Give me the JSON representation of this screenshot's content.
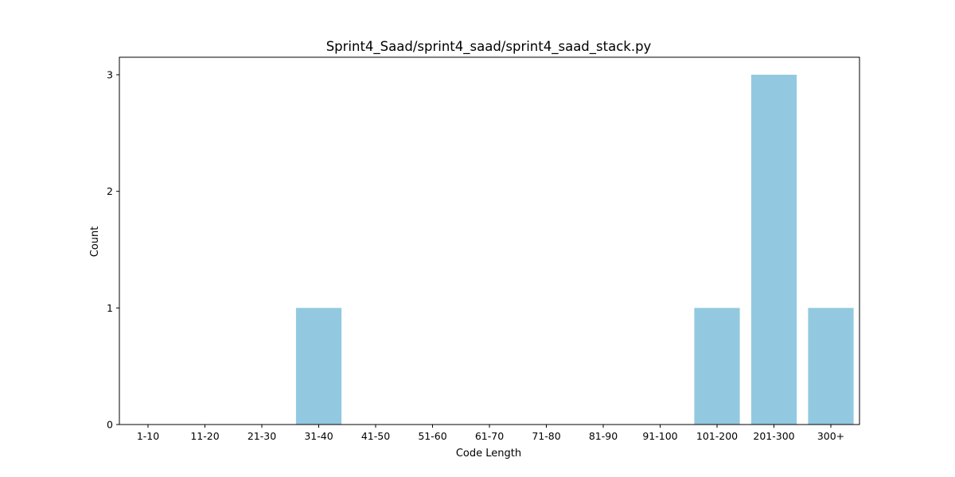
{
  "chart_data": {
    "type": "bar",
    "title": "Sprint4_Saad/sprint4_saad/sprint4_saad_stack.py",
    "xlabel": "Code Length",
    "ylabel": "Count",
    "categories": [
      "1-10",
      "11-20",
      "21-30",
      "31-40",
      "41-50",
      "51-60",
      "61-70",
      "71-80",
      "81-90",
      "91-100",
      "101-200",
      "201-300",
      "300+"
    ],
    "values": [
      0,
      0,
      0,
      1,
      0,
      0,
      0,
      0,
      0,
      0,
      1,
      3,
      1
    ],
    "ylim": [
      0,
      3.15
    ],
    "yticks": [
      0,
      1,
      2,
      3
    ],
    "bar_color": "#92c9e0",
    "grid": false,
    "legend": "none"
  }
}
